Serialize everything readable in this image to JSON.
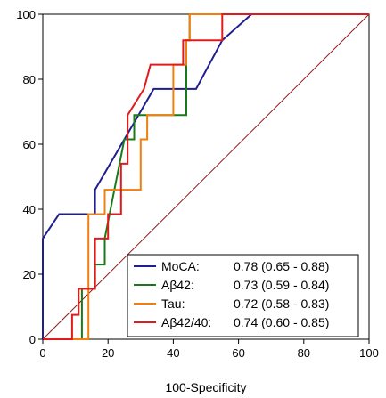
{
  "chart_data": {
    "type": "line",
    "title": "",
    "xlabel": "100-Specificity",
    "ylabel": "",
    "xlim": [
      0,
      100
    ],
    "ylim": [
      0,
      100
    ],
    "xticks": [
      0,
      20,
      40,
      60,
      80,
      100
    ],
    "yticks": [
      0,
      20,
      40,
      60,
      80,
      100
    ],
    "grid": false,
    "legend_position": "bottom-right",
    "reference_line": {
      "x": [
        0,
        100
      ],
      "y": [
        0,
        100
      ],
      "color": "#8b1a1a"
    },
    "series": [
      {
        "name": "MoCA:",
        "auc_label": "0.78 (0.65 - 0.88)",
        "color": "#1f1f8f",
        "x": [
          0,
          0,
          5,
          16,
          16,
          34,
          47,
          55,
          64,
          100
        ],
        "y": [
          0,
          31,
          38.5,
          38.5,
          46,
          77,
          77,
          92,
          100,
          100
        ]
      },
      {
        "name": "Aβ42:",
        "auc_label": "0.73 (0.59 - 0.84)",
        "color": "#1a7a1a",
        "x": [
          0,
          12,
          12,
          16,
          16,
          19,
          19,
          25,
          25,
          28,
          28,
          30,
          30,
          42,
          42,
          44,
          44,
          45,
          45,
          55,
          55,
          100
        ],
        "y": [
          0,
          0,
          15.5,
          15.5,
          23,
          23,
          31,
          61.5,
          61.5,
          61.5,
          69,
          69,
          69,
          69,
          69,
          69,
          92,
          92,
          100,
          100,
          100,
          100
        ]
      },
      {
        "name": "Tau:",
        "auc_label": "0.72 (0.58 - 0.83)",
        "color": "#f07f0f",
        "x": [
          0,
          14,
          14,
          19,
          19,
          30,
          30,
          32,
          32,
          40,
          40,
          44,
          44,
          45,
          45,
          55,
          55,
          100
        ],
        "y": [
          0,
          0,
          38.5,
          38.5,
          46,
          46,
          61.5,
          61.5,
          69,
          69,
          84.5,
          84.5,
          92,
          92,
          100,
          100,
          100,
          100
        ]
      },
      {
        "name": "Aβ42/40:",
        "auc_label": "0.74 (0.60 - 0.85)",
        "color": "#e31a1c",
        "x": [
          0,
          9,
          9,
          11,
          11,
          14,
          14,
          16,
          16,
          20,
          20,
          24,
          24,
          26,
          26,
          31,
          31,
          33,
          33,
          43,
          43,
          55,
          55,
          100
        ],
        "y": [
          0,
          0,
          7.5,
          7.5,
          15.5,
          15.5,
          15.5,
          15.5,
          31,
          31,
          38.5,
          38.5,
          54,
          54,
          69,
          77,
          77,
          84.5,
          84.5,
          84.5,
          92,
          92,
          100,
          100
        ]
      }
    ]
  }
}
